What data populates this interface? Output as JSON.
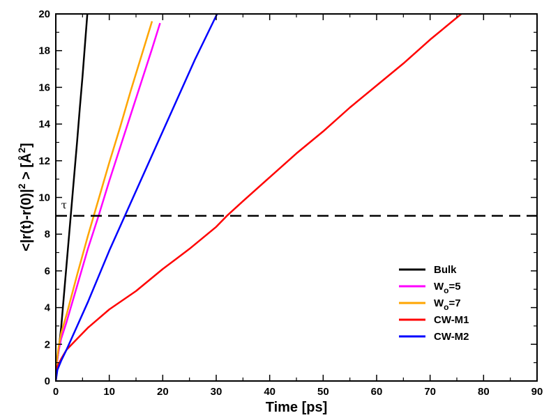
{
  "chart_data": {
    "type": "line",
    "xlabel": "Time [ps]",
    "ylabel": "<|r(t)-r(0)|² > [Å²]",
    "ylabel_parts": {
      "pre": "<|r(t)-r(0)|",
      "sup1": "2",
      "mid": " > [",
      "unit": "Å",
      "sup2": "2",
      "post": "]"
    },
    "xlim": [
      0,
      90
    ],
    "ylim": [
      0,
      20
    ],
    "xticks": [
      0,
      10,
      20,
      30,
      40,
      50,
      60,
      70,
      80,
      90
    ],
    "yticks": [
      0,
      2,
      4,
      6,
      8,
      10,
      12,
      14,
      16,
      18,
      20
    ],
    "grid": false,
    "legend_position": "bottom-right",
    "annotations": [
      {
        "text": "τ",
        "x": 1.0,
        "y": 9.4
      }
    ],
    "reference_line": {
      "y": 9,
      "style": "dashed",
      "color": "#000000"
    },
    "series": [
      {
        "name": "Bulk",
        "legend": {
          "base": "Bulk",
          "sub": "",
          "tail": ""
        },
        "color": "#000000",
        "x": [
          0,
          0.2,
          0.5,
          1,
          1.5,
          2,
          2.5,
          3,
          3.5,
          4,
          4.5,
          5,
          5.5,
          5.9
        ],
        "y": [
          0,
          1.0,
          1.6,
          2.9,
          4.6,
          6.3,
          8.0,
          9.7,
          11.4,
          13.1,
          14.9,
          16.6,
          18.5,
          20
        ]
      },
      {
        "name": "Wo=5",
        "legend": {
          "base": "W",
          "sub": "o",
          "tail": "=5"
        },
        "color": "#ff00ff",
        "x": [
          0,
          0.2,
          0.5,
          1,
          2,
          4,
          6,
          8,
          10,
          12,
          14,
          16,
          18,
          19.5
        ],
        "y": [
          0,
          1.0,
          1.6,
          2.3,
          3.2,
          5.2,
          7.2,
          9.0,
          10.9,
          12.7,
          14.5,
          16.3,
          18.1,
          19.5
        ]
      },
      {
        "name": "Wo=7",
        "legend": {
          "base": "W",
          "sub": "o",
          "tail": "=7"
        },
        "color": "#ffa500",
        "x": [
          0,
          0.2,
          0.5,
          1,
          2,
          4,
          6,
          8,
          10,
          12,
          14,
          16,
          18
        ],
        "y": [
          0,
          1.1,
          1.8,
          2.6,
          3.6,
          5.8,
          7.9,
          9.9,
          11.9,
          13.8,
          15.8,
          17.7,
          19.6
        ]
      },
      {
        "name": "CW-M1",
        "legend": {
          "base": "CW-M1",
          "sub": "",
          "tail": ""
        },
        "color": "#ff0000",
        "x": [
          0,
          0.3,
          1,
          2,
          4,
          6,
          8,
          10,
          15,
          20,
          25,
          30,
          32,
          35,
          40,
          45,
          50,
          55,
          60,
          65,
          70,
          75,
          80,
          82
        ],
        "y": [
          0,
          0.8,
          1.2,
          1.7,
          2.3,
          2.9,
          3.4,
          3.9,
          4.9,
          6.1,
          7.2,
          8.4,
          9.0,
          9.8,
          11.1,
          12.4,
          13.6,
          14.9,
          16.1,
          17.3,
          18.6,
          19.8,
          21.0,
          21.5
        ]
      },
      {
        "name": "CW-M2",
        "legend": {
          "base": "CW-M2",
          "sub": "",
          "tail": ""
        },
        "color": "#0000ff",
        "x": [
          0,
          0.3,
          1,
          2,
          4,
          6,
          8,
          10,
          12,
          14,
          16,
          18,
          20,
          22,
          24,
          26,
          28,
          30,
          31
        ],
        "y": [
          0,
          0.6,
          1.1,
          1.7,
          3.0,
          4.3,
          5.7,
          7.1,
          8.4,
          9.7,
          11.0,
          12.3,
          13.6,
          14.9,
          16.2,
          17.5,
          18.7,
          19.9,
          20.5
        ]
      }
    ]
  }
}
